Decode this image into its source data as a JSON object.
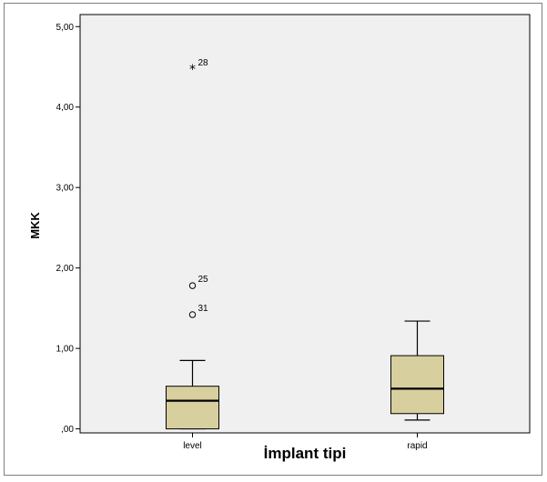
{
  "chart_data": {
    "type": "boxplot",
    "xlabel": "İmplant tipi",
    "ylabel": "MKK",
    "ylim": [
      -0.05,
      5.15
    ],
    "yticks": [
      0,
      1,
      2,
      3,
      4,
      5
    ],
    "ytick_labels": [
      ",00",
      "1,00",
      "2,00",
      "3,00",
      "4,00",
      "5,00"
    ],
    "categories": [
      "level",
      "rapid"
    ],
    "box_color": "#d8cf9e",
    "plot_background": "#f0f0f0",
    "grid": false,
    "boxes": [
      {
        "category": "level",
        "whisker_low": 0.0,
        "q1": 0.0,
        "median": 0.35,
        "q3": 0.53,
        "whisker_high": 0.85,
        "outliers": [
          {
            "value": 1.42,
            "label": "31",
            "marker": "circle"
          },
          {
            "value": 1.78,
            "label": "25",
            "marker": "circle"
          },
          {
            "value": 4.47,
            "label": "28",
            "marker": "star"
          }
        ]
      },
      {
        "category": "rapid",
        "whisker_low": 0.11,
        "q1": 0.19,
        "median": 0.5,
        "q3": 0.91,
        "whisker_high": 1.34,
        "outliers": []
      }
    ]
  }
}
